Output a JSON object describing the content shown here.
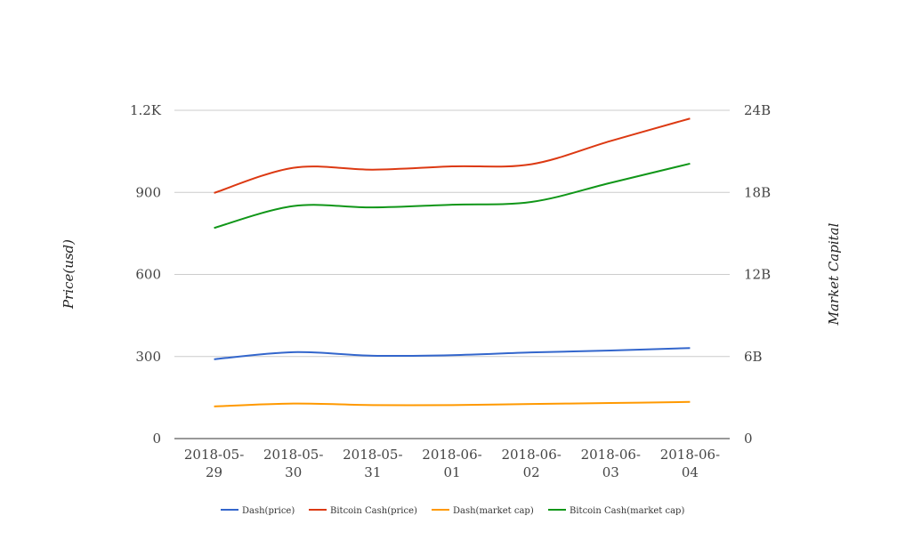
{
  "chart_data": {
    "type": "line",
    "categories": [
      "2018-05-29",
      "2018-05-30",
      "2018-05-31",
      "2018-06-01",
      "2018-06-02",
      "2018-06-03",
      "2018-06-04"
    ],
    "category_lines": [
      [
        "2018-05-",
        "29"
      ],
      [
        "2018-05-",
        "30"
      ],
      [
        "2018-05-",
        "31"
      ],
      [
        "2018-06-",
        "01"
      ],
      [
        "2018-06-",
        "02"
      ],
      [
        "2018-06-",
        "03"
      ],
      [
        "2018-06-",
        "04"
      ]
    ],
    "ylabel_left": "Price(usd)",
    "ylabel_right": "Market Capital",
    "ylim_left": [
      0,
      1200
    ],
    "ylim_right": [
      0,
      24000000000
    ],
    "left_ticks": [
      {
        "value": 0,
        "label": "0"
      },
      {
        "value": 300,
        "label": "300"
      },
      {
        "value": 600,
        "label": "600"
      },
      {
        "value": 900,
        "label": "900"
      },
      {
        "value": 1200,
        "label": "1.2K"
      }
    ],
    "right_ticks": [
      {
        "value": 0,
        "label": "0"
      },
      {
        "value": 6000000000,
        "label": "6B"
      },
      {
        "value": 12000000000,
        "label": "12B"
      },
      {
        "value": 18000000000,
        "label": "18B"
      },
      {
        "value": 24000000000,
        "label": "24B"
      }
    ],
    "grid": true,
    "legend_position": "bottom",
    "series": [
      {
        "name": "Dash(price)",
        "axis": "left",
        "color": "#3366cc",
        "values": [
          290,
          316,
          303,
          305,
          315,
          322,
          331
        ]
      },
      {
        "name": "Bitcoin Cash(price)",
        "axis": "left",
        "color": "#dc3912",
        "values": [
          898,
          990,
          983,
          995,
          1003,
          1088,
          1170
        ]
      },
      {
        "name": "Dash(market cap)",
        "axis": "right",
        "color": "#ff9900",
        "values": [
          2350000000,
          2560000000,
          2450000000,
          2450000000,
          2530000000,
          2600000000,
          2680000000
        ]
      },
      {
        "name": "Bitcoin Cash(market cap)",
        "axis": "right",
        "color": "#109618",
        "values": [
          15400000000,
          17000000000,
          16900000000,
          17100000000,
          17300000000,
          18700000000,
          20100000000
        ]
      }
    ]
  }
}
